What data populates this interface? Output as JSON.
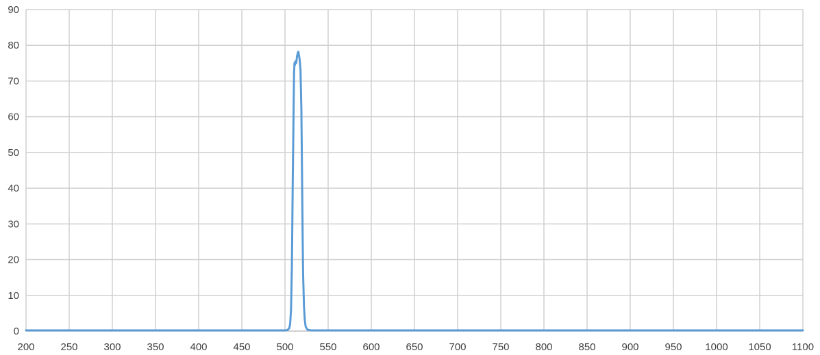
{
  "chart_data": {
    "type": "line",
    "title": "",
    "xlabel": "",
    "ylabel": "",
    "xlim": [
      200,
      1100
    ],
    "ylim": [
      0,
      90
    ],
    "x_ticks": [
      200,
      250,
      300,
      350,
      400,
      450,
      500,
      550,
      600,
      650,
      700,
      750,
      800,
      850,
      900,
      950,
      1000,
      1050,
      1100
    ],
    "y_ticks": [
      0,
      10,
      20,
      30,
      40,
      50,
      60,
      70,
      80,
      90
    ],
    "grid": true,
    "legend": "none",
    "series_color": "#5b9bd5",
    "series": [
      {
        "x": [
          200,
          500,
          503,
          505,
          506,
          507,
          508,
          509,
          510,
          510.5,
          511,
          511.5,
          512,
          513,
          514,
          515,
          515.5,
          516,
          517,
          518,
          519,
          519.5,
          520,
          520.5,
          521,
          522,
          523,
          524,
          526,
          530,
          1100
        ],
        "y": [
          0.2,
          0.2,
          0.3,
          0.8,
          2,
          6,
          18,
          42,
          62,
          72,
          75,
          74.5,
          75.5,
          75,
          77,
          78,
          78.2,
          77.5,
          76,
          73,
          62,
          50,
          38,
          26,
          16,
          7,
          3,
          1.2,
          0.4,
          0.2,
          0.2
        ]
      }
    ]
  }
}
